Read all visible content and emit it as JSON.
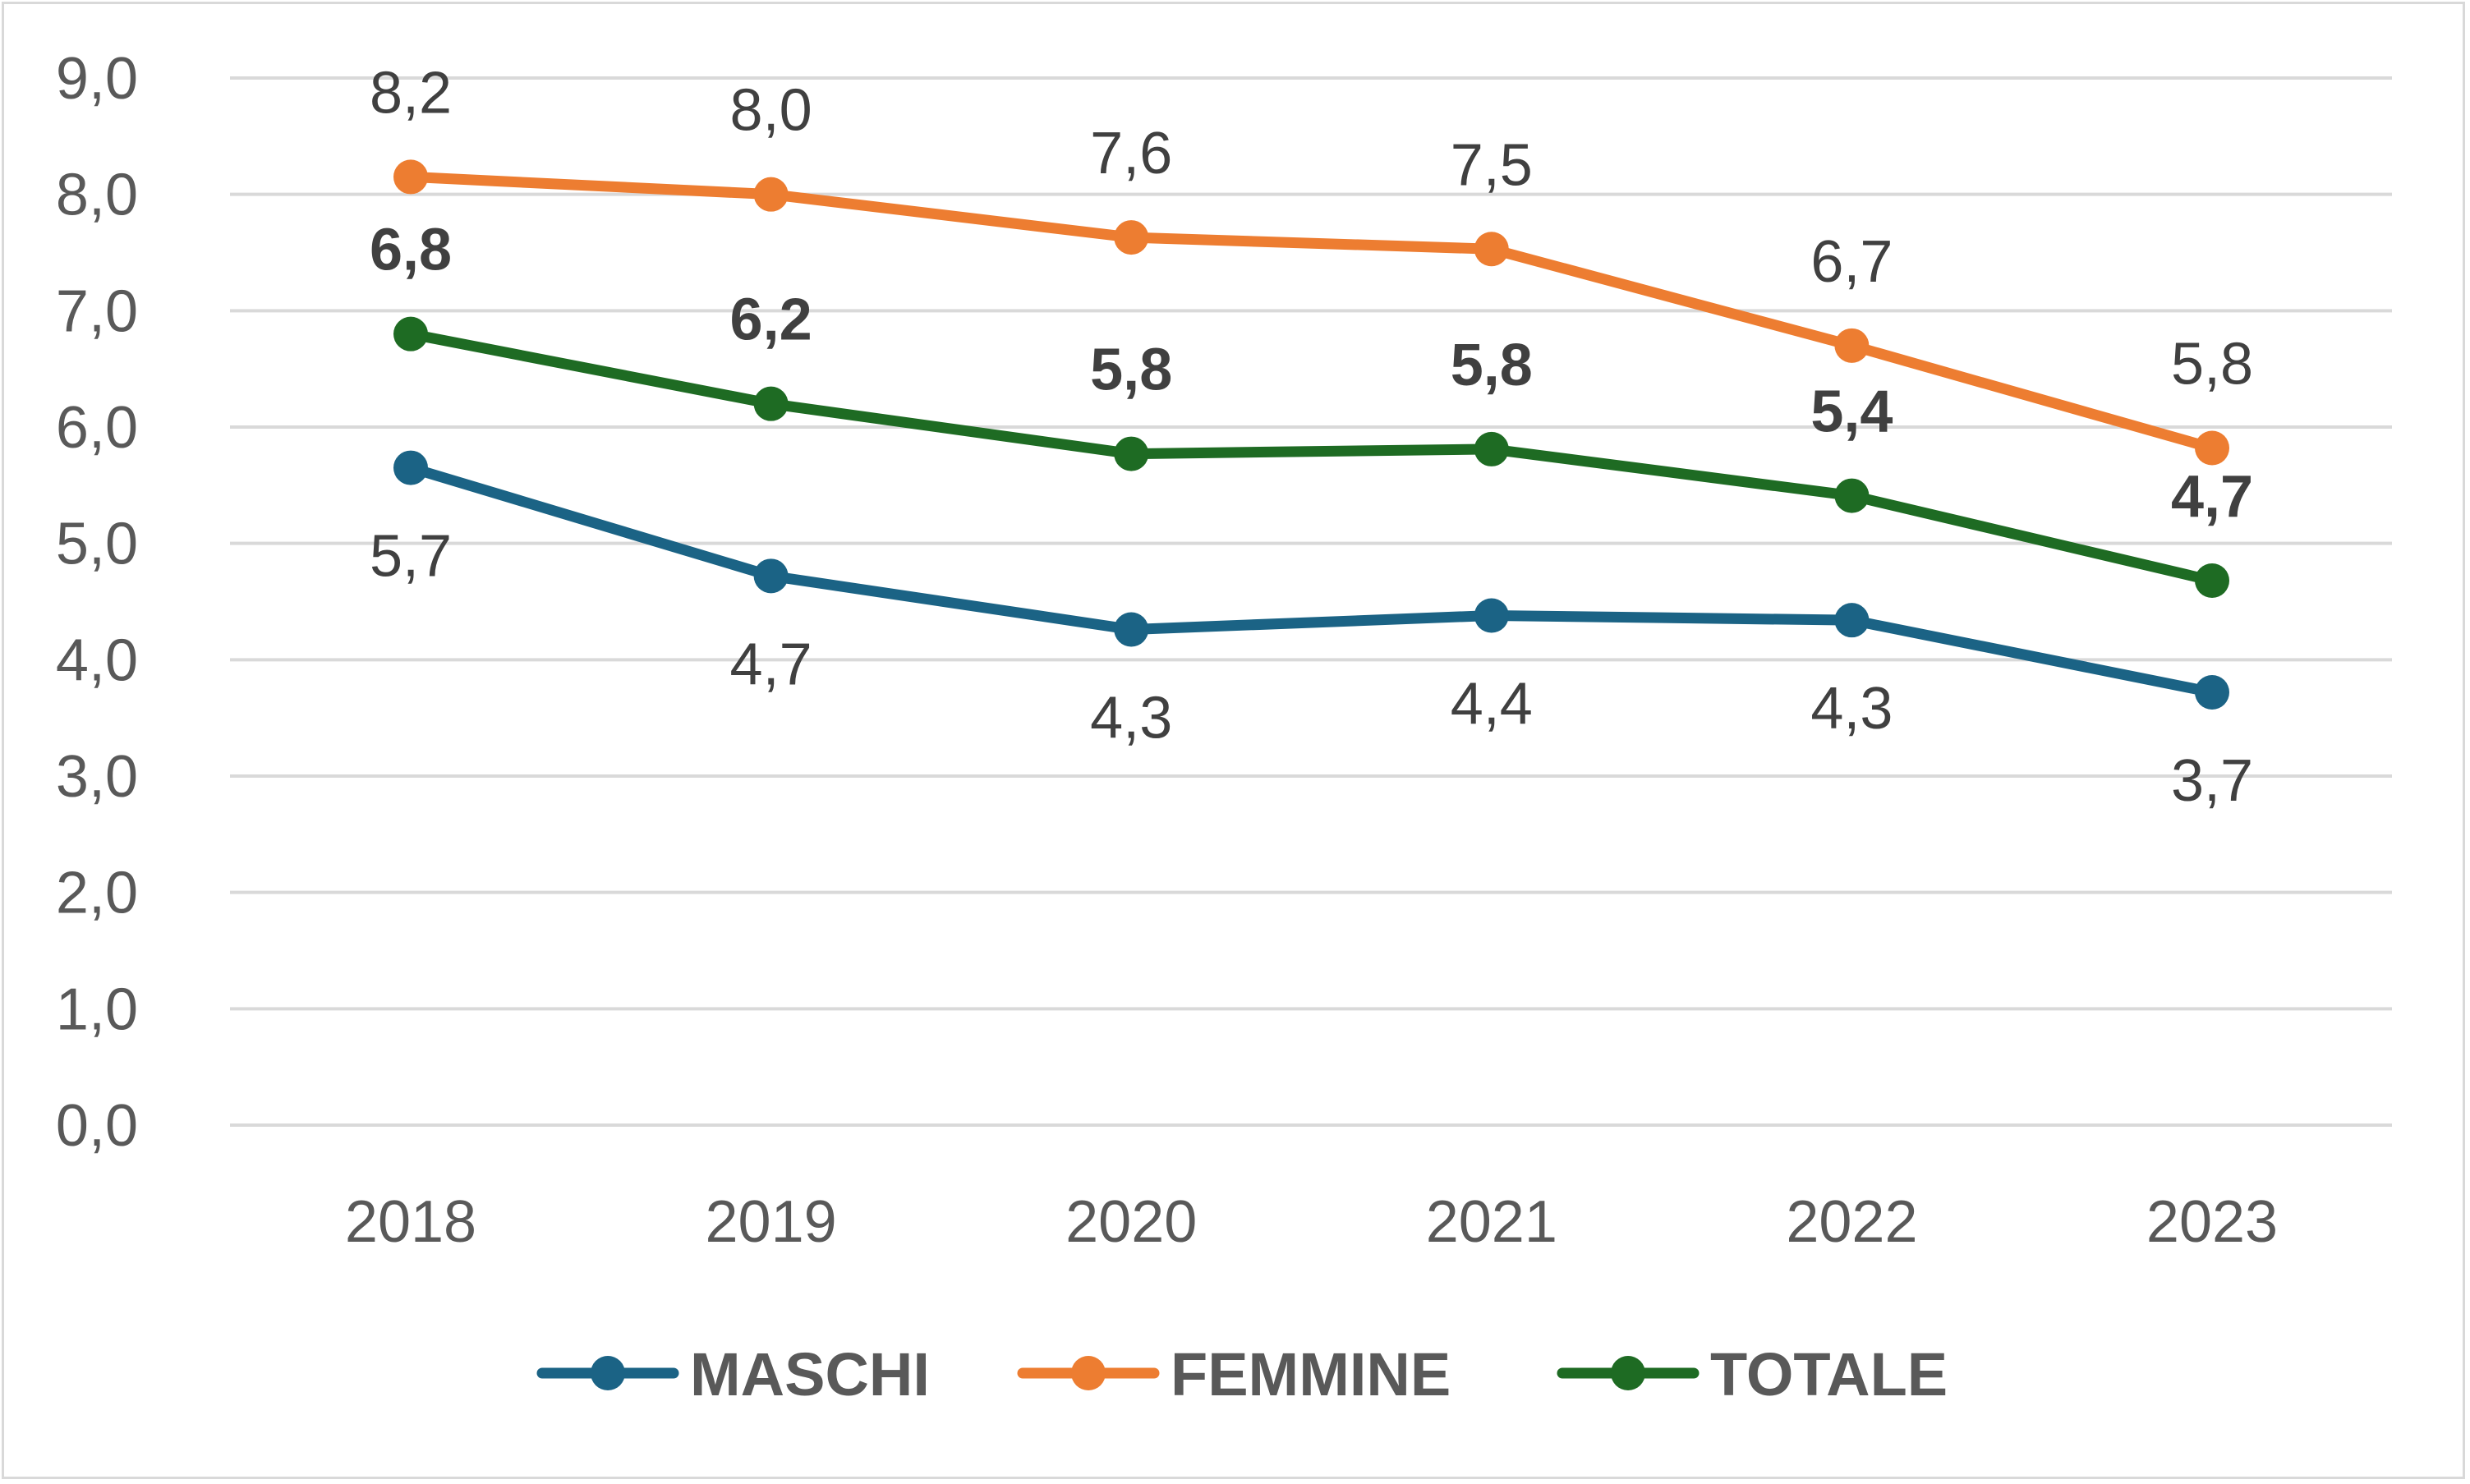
{
  "chart_data": {
    "type": "line",
    "title": "",
    "xlabel": "",
    "ylabel": "",
    "categories": [
      "2018",
      "2019",
      "2020",
      "2021",
      "2022",
      "2023"
    ],
    "ylim": [
      0,
      9
    ],
    "yticks": [
      "0,0",
      "1,0",
      "2,0",
      "3,0",
      "4,0",
      "5,0",
      "6,0",
      "7,0",
      "8,0",
      "9,0"
    ],
    "grid": true,
    "legend_position": "bottom",
    "series": [
      {
        "name": "MASCHI",
        "color": "#1b6385",
        "values": [
          5.65,
          4.72,
          4.26,
          4.38,
          4.34,
          3.72
        ],
        "labels": [
          "5,7",
          "4,7",
          "4,3",
          "4,4",
          "4,3",
          "3,7"
        ],
        "label_position": "below",
        "label_bold": false
      },
      {
        "name": "FEMMINE",
        "color": "#ed7d31",
        "values": [
          8.15,
          8.0,
          7.63,
          7.53,
          6.7,
          5.82
        ],
        "labels": [
          "8,2",
          "8,0",
          "7,6",
          "7,5",
          "6,7",
          "5,8"
        ],
        "label_position": "above",
        "label_bold": false
      },
      {
        "name": "TOTALE",
        "color": "#1e6b23",
        "values": [
          6.8,
          6.2,
          5.77,
          5.81,
          5.41,
          4.68
        ],
        "labels": [
          "6,8",
          "6,2",
          "5,8",
          "5,8",
          "5,4",
          "4,7"
        ],
        "label_position": "above",
        "label_bold": true
      }
    ]
  }
}
